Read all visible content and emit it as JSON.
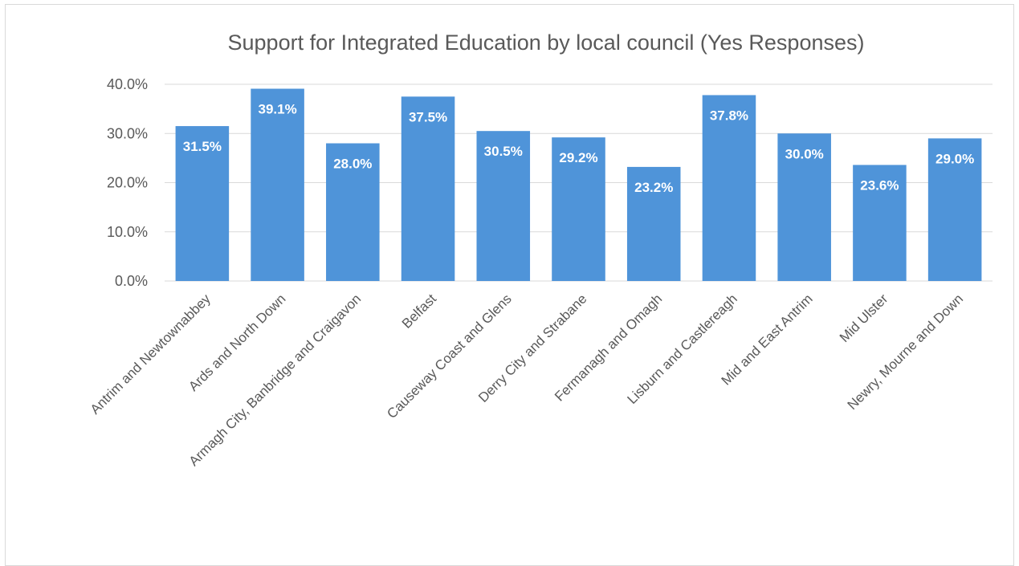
{
  "chart_data": {
    "type": "bar",
    "title": "Support for Integrated Education by local council (Yes Responses)",
    "xlabel": "",
    "ylabel": "",
    "categories": [
      "Antrim and Newtownabbey",
      "Ards and North Down",
      "Armagh City, Banbridge and Craigavon",
      "Belfast",
      "Causeway Coast and Glens",
      "Derry City and Strabane",
      "Fermanagh and Omagh",
      "Lisburn and Castlereagh",
      "Mid and East Antrim",
      "Mid Ulster",
      "Newry, Mourne and Down"
    ],
    "values": [
      31.5,
      39.1,
      28.0,
      37.5,
      30.5,
      29.2,
      23.2,
      37.8,
      30.0,
      23.6,
      29.0
    ],
    "data_labels": [
      "31.5%",
      "39.1%",
      "28.0%",
      "37.5%",
      "30.5%",
      "29.2%",
      "23.2%",
      "37.8%",
      "30.0%",
      "23.6%",
      "29.0%"
    ],
    "yticks": [
      0,
      10,
      20,
      30,
      40
    ],
    "ytick_labels": [
      "0.0%",
      "10.0%",
      "20.0%",
      "30.0%",
      "40.0%"
    ],
    "ylim": [
      0,
      40
    ],
    "grid": true,
    "legend": "none",
    "bar_color": "#4f94d9",
    "gridline_color": "#d9d9d9"
  }
}
